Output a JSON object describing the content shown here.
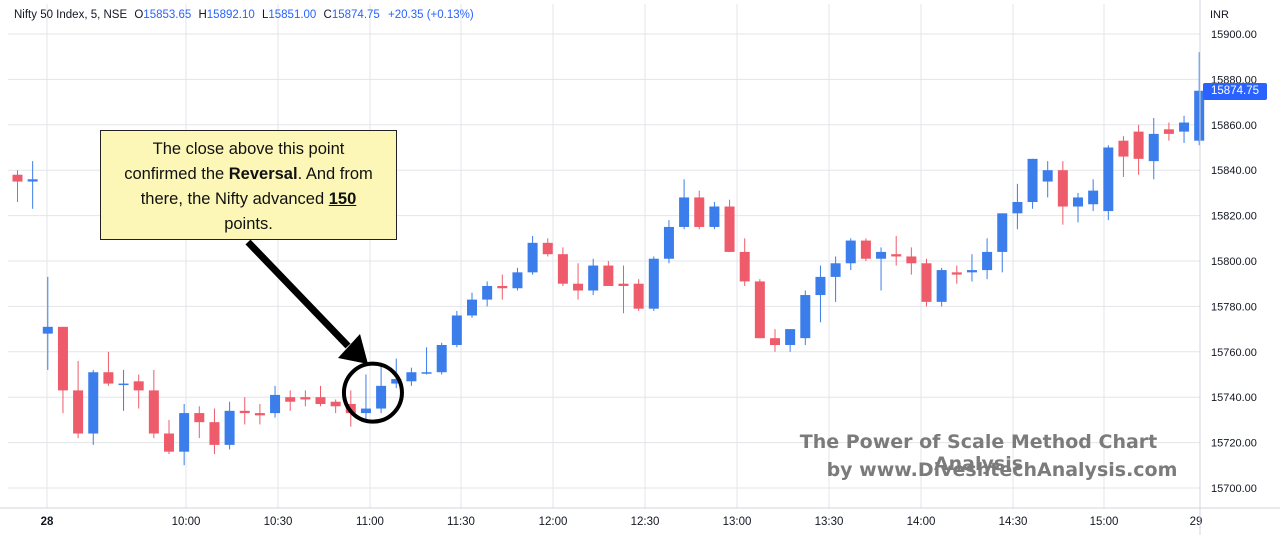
{
  "header": {
    "symbol": "Nifty 50 Index, 5, NSE",
    "o_label": "O",
    "o_value": "15853.65",
    "h_label": "H",
    "h_value": "15892.10",
    "l_label": "L",
    "l_value": "15851.00",
    "c_label": "C",
    "c_value": "15874.75",
    "change": "+20.35 (+0.13%)"
  },
  "currency": "INR",
  "last_price": "15874.75",
  "callout": {
    "line1": "The close above this point",
    "line2a": "confirmed the ",
    "line2b": "Reversal",
    "line2c": ". And from",
    "line3a": "there, the Nifty advanced ",
    "line3b": "150",
    "line4": "points."
  },
  "watermark": {
    "line1": "The Power of Scale Method Chart Analysis",
    "line2": "by www.DiveshtechAnalysis.com"
  },
  "colors": {
    "up": "#3b7dea",
    "down": "#ee5b6a",
    "grid": "#e3e5ea",
    "annotation": "#000000",
    "callout_bg": "#fcf7b6"
  },
  "chart_data": {
    "type": "candlestick",
    "interval_minutes": 5,
    "y_axis": {
      "min": 15690,
      "max": 15905,
      "ticks": [
        15700,
        15720,
        15740,
        15760,
        15780,
        15800,
        15820,
        15840,
        15860,
        15880,
        15900
      ]
    },
    "x_ticks": [
      "28",
      "10:00",
      "10:30",
      "11:00",
      "11:30",
      "12:00",
      "12:30",
      "13:00",
      "13:30",
      "14:00",
      "14:30",
      "15:00",
      "29"
    ],
    "candles": [
      {
        "o": 15838,
        "h": 15840,
        "l": 15826,
        "c": 15835
      },
      {
        "o": 15835,
        "h": 15844,
        "l": 15823,
        "c": 15836
      },
      {
        "o": 15768,
        "h": 15793,
        "l": 15752,
        "c": 15771
      },
      {
        "o": 15771,
        "h": 15771,
        "l": 15733,
        "c": 15743
      },
      {
        "o": 15743,
        "h": 15756,
        "l": 15722,
        "c": 15724
      },
      {
        "o": 15724,
        "h": 15752,
        "l": 15719,
        "c": 15751
      },
      {
        "o": 15751,
        "h": 15760,
        "l": 15745,
        "c": 15746
      },
      {
        "o": 15746,
        "h": 15752,
        "l": 15734,
        "c": 15746
      },
      {
        "o": 15747,
        "h": 15750,
        "l": 15735,
        "c": 15743
      },
      {
        "o": 15743,
        "h": 15752,
        "l": 15722,
        "c": 15724
      },
      {
        "o": 15724,
        "h": 15730,
        "l": 15715,
        "c": 15716
      },
      {
        "o": 15716,
        "h": 15737,
        "l": 15710,
        "c": 15733
      },
      {
        "o": 15733,
        "h": 15736,
        "l": 15722,
        "c": 15729
      },
      {
        "o": 15729,
        "h": 15735,
        "l": 15715,
        "c": 15719
      },
      {
        "o": 15719,
        "h": 15738,
        "l": 15717,
        "c": 15734
      },
      {
        "o": 15734,
        "h": 15740,
        "l": 15728,
        "c": 15733
      },
      {
        "o": 15733,
        "h": 15737,
        "l": 15728,
        "c": 15732
      },
      {
        "o": 15733,
        "h": 15745,
        "l": 15731,
        "c": 15741
      },
      {
        "o": 15740,
        "h": 15743,
        "l": 15734,
        "c": 15738
      },
      {
        "o": 15740,
        "h": 15743,
        "l": 15736,
        "c": 15739
      },
      {
        "o": 15740,
        "h": 15745,
        "l": 15736,
        "c": 15737
      },
      {
        "o": 15738,
        "h": 15739,
        "l": 15733,
        "c": 15736
      },
      {
        "o": 15737,
        "h": 15743,
        "l": 15727,
        "c": 15733
      },
      {
        "o": 15733,
        "h": 15750,
        "l": 15729,
        "c": 15735
      },
      {
        "o": 15735,
        "h": 15755,
        "l": 15733,
        "c": 15745
      },
      {
        "o": 15746,
        "h": 15757,
        "l": 15744,
        "c": 15748
      },
      {
        "o": 15747,
        "h": 15753,
        "l": 15745,
        "c": 15751
      },
      {
        "o": 15751,
        "h": 15762,
        "l": 15750,
        "c": 15751
      },
      {
        "o": 15751,
        "h": 15764,
        "l": 15750,
        "c": 15763
      },
      {
        "o": 15763,
        "h": 15778,
        "l": 15762,
        "c": 15776
      },
      {
        "o": 15776,
        "h": 15786,
        "l": 15775,
        "c": 15783
      },
      {
        "o": 15783,
        "h": 15791,
        "l": 15780,
        "c": 15789
      },
      {
        "o": 15789,
        "h": 15794,
        "l": 15783,
        "c": 15788
      },
      {
        "o": 15788,
        "h": 15797,
        "l": 15787,
        "c": 15795
      },
      {
        "o": 15795,
        "h": 15811,
        "l": 15794,
        "c": 15808
      },
      {
        "o": 15808,
        "h": 15810,
        "l": 15802,
        "c": 15803
      },
      {
        "o": 15803,
        "h": 15806,
        "l": 15789,
        "c": 15790
      },
      {
        "o": 15790,
        "h": 15799,
        "l": 15783,
        "c": 15787
      },
      {
        "o": 15787,
        "h": 15801,
        "l": 15785,
        "c": 15798
      },
      {
        "o": 15798,
        "h": 15800,
        "l": 15789,
        "c": 15789
      },
      {
        "o": 15790,
        "h": 15798,
        "l": 15777,
        "c": 15789
      },
      {
        "o": 15790,
        "h": 15792,
        "l": 15778,
        "c": 15779
      },
      {
        "o": 15779,
        "h": 15802,
        "l": 15778,
        "c": 15801
      },
      {
        "o": 15801,
        "h": 15818,
        "l": 15799,
        "c": 15815
      },
      {
        "o": 15815,
        "h": 15836,
        "l": 15814,
        "c": 15828
      },
      {
        "o": 15828,
        "h": 15831,
        "l": 15814,
        "c": 15815
      },
      {
        "o": 15815,
        "h": 15826,
        "l": 15814,
        "c": 15824
      },
      {
        "o": 15824,
        "h": 15827,
        "l": 15804,
        "c": 15804
      },
      {
        "o": 15804,
        "h": 15810,
        "l": 15789,
        "c": 15791
      },
      {
        "o": 15791,
        "h": 15792,
        "l": 15766,
        "c": 15766
      },
      {
        "o": 15766,
        "h": 15770,
        "l": 15760,
        "c": 15763
      },
      {
        "o": 15763,
        "h": 15769,
        "l": 15760,
        "c": 15770
      },
      {
        "o": 15766,
        "h": 15787,
        "l": 15763,
        "c": 15785
      },
      {
        "o": 15785,
        "h": 15798,
        "l": 15773,
        "c": 15793
      },
      {
        "o": 15793,
        "h": 15802,
        "l": 15782,
        "c": 15799
      },
      {
        "o": 15799,
        "h": 15810,
        "l": 15796,
        "c": 15809
      },
      {
        "o": 15809,
        "h": 15810,
        "l": 15800,
        "c": 15801
      },
      {
        "o": 15801,
        "h": 15806,
        "l": 15787,
        "c": 15804
      },
      {
        "o": 15803,
        "h": 15811,
        "l": 15798,
        "c": 15802
      },
      {
        "o": 15802,
        "h": 15806,
        "l": 15794,
        "c": 15799
      },
      {
        "o": 15799,
        "h": 15801,
        "l": 15780,
        "c": 15782
      },
      {
        "o": 15782,
        "h": 15797,
        "l": 15780,
        "c": 15796
      },
      {
        "o": 15795,
        "h": 15798,
        "l": 15790,
        "c": 15794
      },
      {
        "o": 15795,
        "h": 15803,
        "l": 15791,
        "c": 15796
      },
      {
        "o": 15796,
        "h": 15810,
        "l": 15792,
        "c": 15804
      },
      {
        "o": 15804,
        "h": 15821,
        "l": 15795,
        "c": 15821
      },
      {
        "o": 15821,
        "h": 15834,
        "l": 15814,
        "c": 15826
      },
      {
        "o": 15826,
        "h": 15845,
        "l": 15823,
        "c": 15845
      },
      {
        "o": 15835,
        "h": 15844,
        "l": 15828,
        "c": 15840
      },
      {
        "o": 15840,
        "h": 15844,
        "l": 15816,
        "c": 15824
      },
      {
        "o": 15824,
        "h": 15830,
        "l": 15817,
        "c": 15828
      },
      {
        "o": 15825,
        "h": 15836,
        "l": 15822,
        "c": 15831
      },
      {
        "o": 15822,
        "h": 15851,
        "l": 15818,
        "c": 15850
      },
      {
        "o": 15853,
        "h": 15855,
        "l": 15837,
        "c": 15846
      },
      {
        "o": 15857,
        "h": 15860,
        "l": 15838,
        "c": 15845
      },
      {
        "o": 15844,
        "h": 15863,
        "l": 15836,
        "c": 15856
      },
      {
        "o": 15858,
        "h": 15861,
        "l": 15853,
        "c": 15856
      },
      {
        "o": 15857,
        "h": 15864,
        "l": 15852,
        "c": 15861
      },
      {
        "o": 15853,
        "h": 15892,
        "l": 15851,
        "c": 15875
      }
    ],
    "annotations": [
      {
        "type": "circle",
        "around_candle": 23
      },
      {
        "type": "arrow",
        "from": "callout",
        "to": "circle"
      }
    ]
  }
}
